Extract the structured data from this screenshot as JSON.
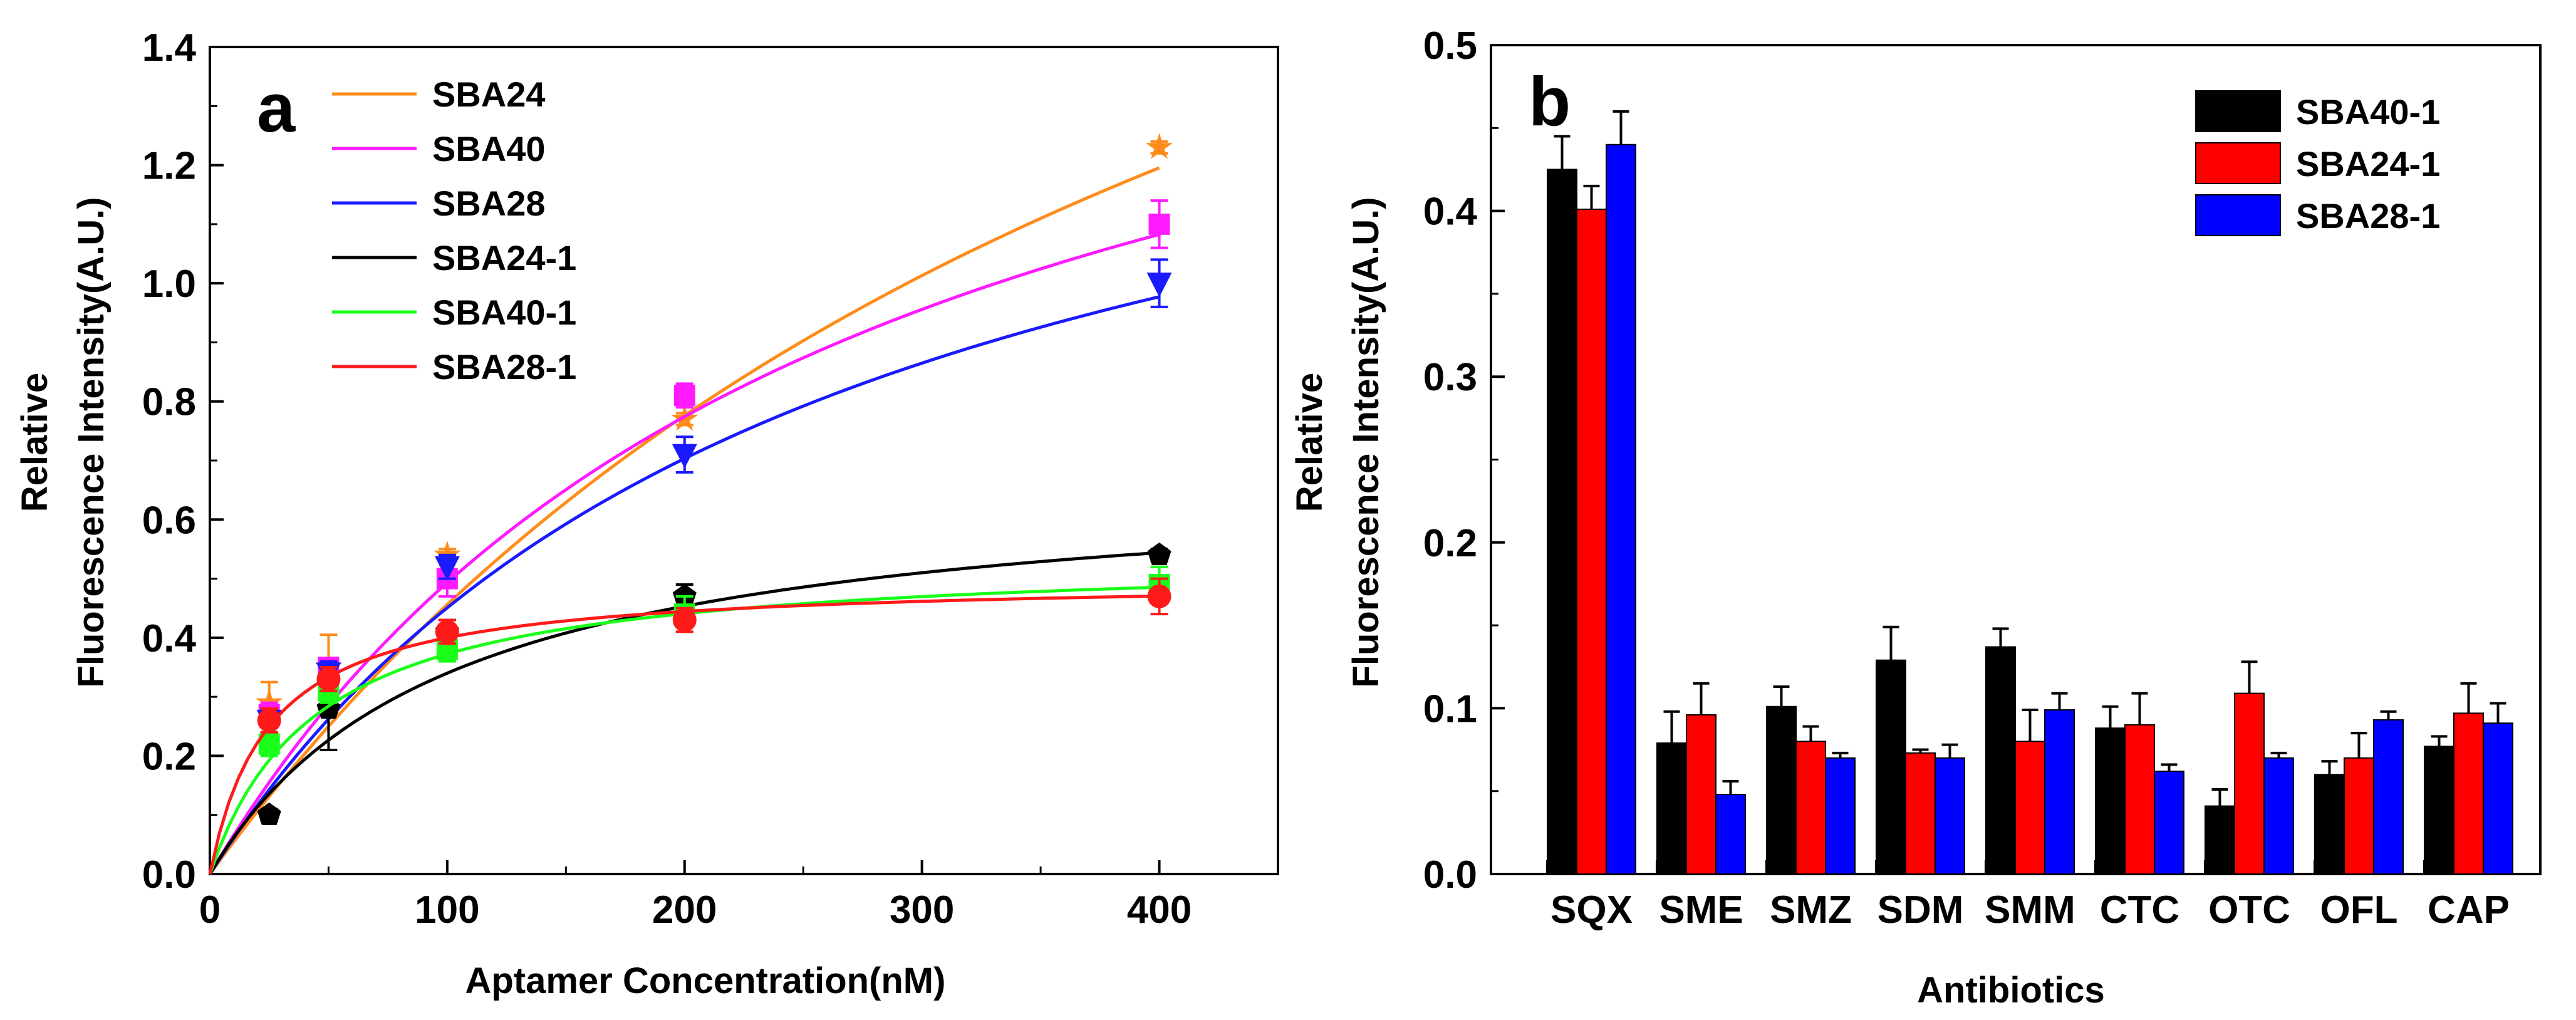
{
  "chart_data": [
    {
      "type": "scatter",
      "panel_label": "a",
      "xlabel": "Aptamer Concentration(nM)",
      "ylabel": [
        "Relative",
        "Fluorescence Intensity(A.U.)"
      ],
      "xlim": [
        0,
        450
      ],
      "ylim": [
        0,
        1.4
      ],
      "xticks": [
        0,
        100,
        200,
        300,
        400
      ],
      "yticks": [
        0.0,
        0.2,
        0.4,
        0.6,
        0.8,
        1.0,
        1.2,
        1.4
      ],
      "tick_labels_x": [
        "0",
        "100",
        "200",
        "300",
        "400"
      ],
      "tick_labels_y": [
        "0.0",
        "0.2",
        "0.4",
        "0.6",
        "0.8",
        "1.0",
        "1.2",
        "1.4"
      ],
      "legend": [
        "SBA24",
        "SBA40",
        "SBA28",
        "SBA24-1",
        "SBA40-1",
        "SBA28-1"
      ],
      "x": [
        0,
        25,
        50,
        100,
        200,
        400
      ],
      "series": [
        {
          "name": "SBA24",
          "color": "#ff8c1a",
          "marker": "star",
          "values": [
            0,
            0.29,
            0.35,
            0.54,
            0.77,
            1.23
          ],
          "errors": [
            0,
            0.035,
            0.055,
            0.01,
            0.01,
            0.01
          ],
          "fit": {
            "bmax": 2.6,
            "kd": 470
          }
        },
        {
          "name": "SBA40",
          "color": "#ff1aff",
          "marker": "square",
          "values": [
            0,
            0.27,
            0.35,
            0.5,
            0.81,
            1.1
          ],
          "errors": [
            0,
            0.02,
            0.015,
            0.03,
            0.02,
            0.04
          ],
          "fit": {
            "bmax": 1.8,
            "kd": 265
          }
        },
        {
          "name": "SBA28",
          "color": "#1a1aff",
          "marker": "triangle-down",
          "values": [
            0,
            0.26,
            0.34,
            0.52,
            0.71,
            1.0
          ],
          "errors": [
            0,
            0.02,
            0.02,
            0.02,
            0.03,
            0.04
          ],
          "fit": {
            "bmax": 1.6,
            "kd": 255
          }
        },
        {
          "name": "SBA24-1",
          "color": "#000000",
          "marker": "pentagon",
          "values": [
            0,
            0.1,
            0.28,
            0.41,
            0.47,
            0.54
          ],
          "errors": [
            0,
            0.01,
            0.07,
            0.02,
            0.02,
            0.01
          ],
          "fit": {
            "bmax": 0.68,
            "kd": 100
          }
        },
        {
          "name": "SBA40-1",
          "color": "#1aff1a",
          "marker": "square",
          "values": [
            0,
            0.22,
            0.31,
            0.38,
            0.44,
            0.49
          ],
          "errors": [
            0,
            0.02,
            0.02,
            0.02,
            0.03,
            0.03
          ],
          "fit": {
            "bmax": 0.54,
            "kd": 45
          }
        },
        {
          "name": "SBA28-1",
          "color": "#ff1a1a",
          "marker": "circle",
          "values": [
            0,
            0.26,
            0.33,
            0.41,
            0.43,
            0.47
          ],
          "errors": [
            0,
            0.02,
            0.02,
            0.02,
            0.02,
            0.03
          ],
          "fit": {
            "bmax": 0.5,
            "kd": 25
          }
        }
      ]
    },
    {
      "type": "bar",
      "panel_label": "b",
      "xlabel": "Antibiotics",
      "ylabel": [
        "Relative",
        "Fluorescence Intensity(A.U.)"
      ],
      "ylim": [
        0,
        0.5
      ],
      "yticks": [
        0.0,
        0.1,
        0.2,
        0.3,
        0.4,
        0.5
      ],
      "tick_labels_y": [
        "0.0",
        "0.1",
        "0.2",
        "0.3",
        "0.4",
        "0.5"
      ],
      "categories": [
        "SQX",
        "SME",
        "SMZ",
        "SDM",
        "SMM",
        "CTC",
        "OTC",
        "OFL",
        "CAP"
      ],
      "legend": [
        "SBA40-1",
        "SBA24-1",
        "SBA28-1"
      ],
      "series": [
        {
          "name": "SBA40-1",
          "color": "#000000",
          "values": [
            0.425,
            0.079,
            0.101,
            0.129,
            0.137,
            0.088,
            0.041,
            0.06,
            0.077
          ],
          "errors": [
            0.02,
            0.019,
            0.012,
            0.02,
            0.011,
            0.013,
            0.01,
            0.008,
            0.006
          ]
        },
        {
          "name": "SBA24-1",
          "color": "#ff0000",
          "values": [
            0.401,
            0.096,
            0.08,
            0.073,
            0.08,
            0.09,
            0.109,
            0.07,
            0.097
          ],
          "errors": [
            0.014,
            0.019,
            0.009,
            0.002,
            0.019,
            0.019,
            0.019,
            0.015,
            0.018
          ]
        },
        {
          "name": "SBA28-1",
          "color": "#0000ff",
          "values": [
            0.44,
            0.048,
            0.07,
            0.07,
            0.099,
            0.062,
            0.07,
            0.093,
            0.091
          ],
          "errors": [
            0.02,
            0.008,
            0.003,
            0.008,
            0.01,
            0.004,
            0.003,
            0.005,
            0.012
          ]
        }
      ]
    }
  ]
}
